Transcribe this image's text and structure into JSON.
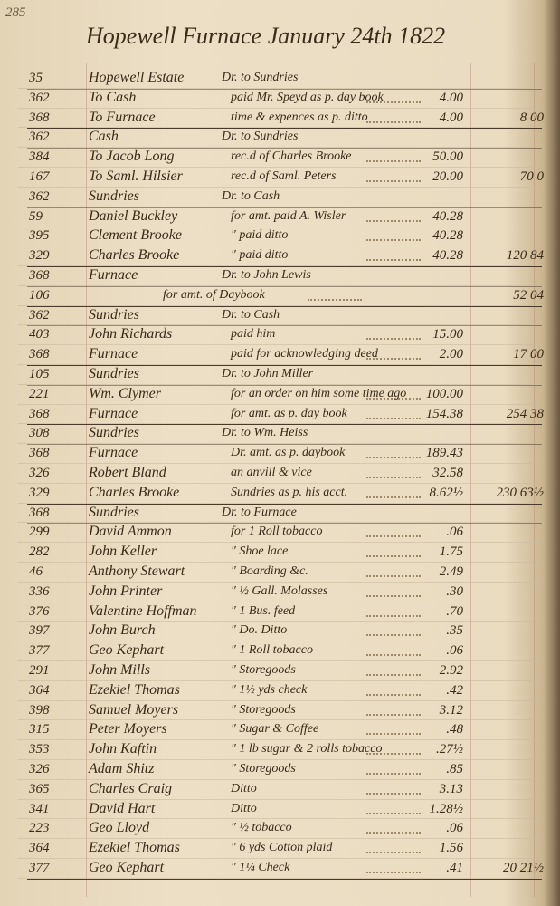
{
  "page_number": "285",
  "title": "Hopewell Furnace January 24th 1822",
  "rows": [
    {
      "folio": "35",
      "account": "Hopewell Estate",
      "description": "Dr. to Sundries"
    },
    {
      "folio": "362",
      "account": "To Cash",
      "description": "paid Mr. Speyd as p. day book",
      "amount": "4.00"
    },
    {
      "folio": "368",
      "account": "To Furnace",
      "description": "time & expences as p. ditto",
      "amount": "4.00",
      "total": "8 00"
    },
    {
      "folio": "362",
      "account": "Cash",
      "description": "Dr. to Sundries"
    },
    {
      "folio": "384",
      "account": "To Jacob Long",
      "description": "rec.d of Charles Brooke",
      "amount": "50.00"
    },
    {
      "folio": "167",
      "account": "To Saml. Hilsier",
      "description": "rec.d of Saml. Peters",
      "amount": "20.00",
      "total": "70 0"
    },
    {
      "folio": "362",
      "account": "Sundries",
      "description": "Dr. to Cash"
    },
    {
      "folio": "59",
      "account": "Daniel Buckley",
      "description": "for amt. paid A. Wisler",
      "amount": "40.28"
    },
    {
      "folio": "395",
      "account": "Clement Brooke",
      "description": "″ paid ditto",
      "amount": "40.28"
    },
    {
      "folio": "329",
      "account": "Charles Brooke",
      "description": "″ paid ditto",
      "amount": "40.28",
      "total": "120 84"
    },
    {
      "folio": "368",
      "account": "Furnace",
      "description": "Dr. to John Lewis"
    },
    {
      "folio": "106",
      "description": "for amt. of Daybook",
      "total": "52 04"
    },
    {
      "folio": "362",
      "account": "Sundries",
      "description": "Dr. to Cash"
    },
    {
      "folio": "403",
      "account": "John Richards",
      "description": "paid him",
      "amount": "15.00"
    },
    {
      "folio": "368",
      "account": "Furnace",
      "description": "paid for acknowledging deed",
      "amount": "2.00",
      "total": "17 00"
    },
    {
      "folio": "105",
      "account": "Sundries",
      "description": "Dr. to John Miller"
    },
    {
      "folio": "221",
      "account": "Wm. Clymer",
      "description": "for an order on him some time ago",
      "amount": "100.00"
    },
    {
      "folio": "368",
      "account": "Furnace",
      "description": "for amt. as p. day book",
      "amount": "154.38",
      "total": "254 38"
    },
    {
      "folio": "308",
      "account": "Sundries",
      "description": "Dr. to Wm. Heiss"
    },
    {
      "folio": "368",
      "account": "Furnace",
      "description": "Dr. amt. as p. daybook",
      "amount": "189.43"
    },
    {
      "folio": "326",
      "account": "Robert Bland",
      "description": "an anvill & vice",
      "amount": "32.58"
    },
    {
      "folio": "329",
      "account": "Charles Brooke",
      "description": "Sundries as p. his acct.",
      "amount": "8.62½",
      "total": "230 63½"
    },
    {
      "folio": "368",
      "account": "Sundries",
      "description": "Dr. to Furnace"
    },
    {
      "folio": "299",
      "account": "David Ammon",
      "description": "for 1 Roll tobacco",
      "amount": ".06"
    },
    {
      "folio": "282",
      "account": "John Keller",
      "description": "″ Shoe lace",
      "amount": "1.75"
    },
    {
      "folio": "46",
      "account": "Anthony Stewart",
      "description": "″ Boarding &c.",
      "amount": "2.49"
    },
    {
      "folio": "336",
      "account": "John Printer",
      "description": "″ ½ Gall. Molasses",
      "amount": ".30"
    },
    {
      "folio": "376",
      "account": "Valentine Hoffman",
      "description": "″ 1 Bus. feed",
      "amount": ".70"
    },
    {
      "folio": "397",
      "account": "John Burch",
      "description": "″ Do. Ditto",
      "amount": ".35"
    },
    {
      "folio": "377",
      "account": "Geo Kephart",
      "description": "″ 1 Roll tobacco",
      "amount": ".06"
    },
    {
      "folio": "291",
      "account": "John Mills",
      "description": "″ Storegoods",
      "amount": "2.92"
    },
    {
      "folio": "364",
      "account": "Ezekiel Thomas",
      "description": "″ 1½ yds check",
      "amount": ".42"
    },
    {
      "folio": "398",
      "account": "Samuel Moyers",
      "description": "″ Storegoods",
      "amount": "3.12"
    },
    {
      "folio": "315",
      "account": "Peter Moyers",
      "description": "″ Sugar & Coffee",
      "amount": ".48"
    },
    {
      "folio": "353",
      "account": "John Kaftin",
      "description": "″ 1 lb sugar & 2 rolls tobacco",
      "amount": ".27½"
    },
    {
      "folio": "326",
      "account": "Adam Shitz",
      "description": "″ Storegoods",
      "amount": ".85"
    },
    {
      "folio": "365",
      "account": "Charles Craig",
      "description": "Ditto",
      "amount": "3.13"
    },
    {
      "folio": "341",
      "account": "David Hart",
      "description": "Ditto",
      "amount": "1.28½"
    },
    {
      "folio": "223",
      "account": "Geo Lloyd",
      "description": "″ ½ tobacco",
      "amount": ".06"
    },
    {
      "folio": "364",
      "account": "Ezekiel Thomas",
      "description": "″ 6 yds Cotton plaid",
      "amount": "1.56"
    },
    {
      "folio": "377",
      "account": "Geo Kephart",
      "description": "″ 1¼ Check",
      "amount": ".41",
      "total": "20 21½"
    }
  ]
}
